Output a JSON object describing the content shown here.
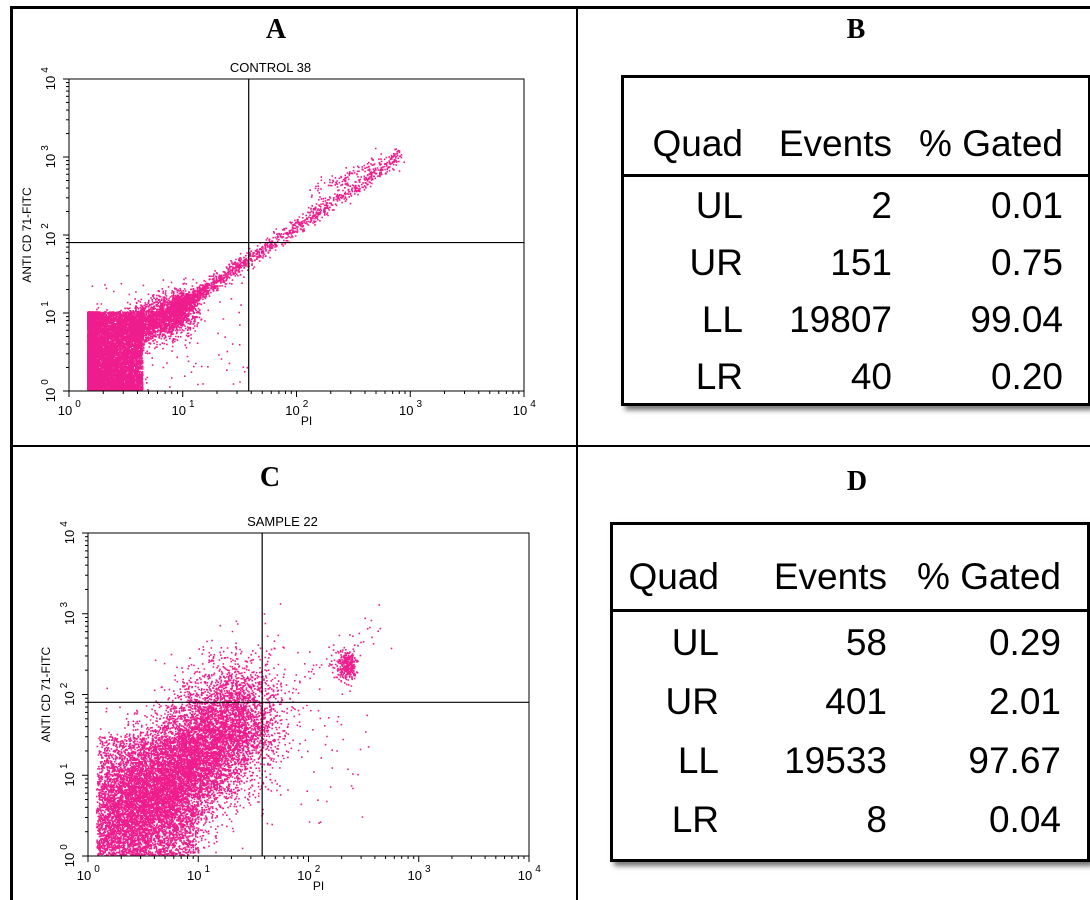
{
  "panels": {
    "A": "A",
    "B": "B",
    "C": "C",
    "D": "D"
  },
  "colors": {
    "dots": "#ee1c8c",
    "axes": "#000000"
  },
  "chart_data": [
    {
      "type": "scatter",
      "title": "CONTROL 38",
      "xlabel": "PI",
      "ylabel": "ANTI CD 71-FITC",
      "xscale": "log",
      "yscale": "log",
      "xlim": [
        1,
        10000
      ],
      "ylim": [
        1,
        10000
      ],
      "xticks": [
        "10",
        "10",
        "10",
        "10",
        "10"
      ],
      "xtick_exp": [
        "0",
        "1",
        "2",
        "3",
        "4"
      ],
      "yticks": [
        "10",
        "10",
        "10",
        "10",
        "10"
      ],
      "ytick_exp": [
        "0",
        "1",
        "2",
        "3",
        "4"
      ],
      "quadrant_gate": {
        "x": 38,
        "y": 80
      },
      "populations": [
        {
          "region": "LL dense cluster",
          "x_range": [
            1.5,
            8
          ],
          "y_range": [
            1,
            12
          ]
        },
        {
          "region": "diagonal tail",
          "x_range": [
            8,
            800
          ],
          "y_range": [
            12,
            1200
          ]
        }
      ]
    },
    {
      "type": "table",
      "columns": [
        "Quad",
        "Events",
        "% Gated"
      ],
      "rows": [
        [
          "UL",
          "2",
          "0.01"
        ],
        [
          "UR",
          "151",
          "0.75"
        ],
        [
          "LL",
          "19807",
          "99.04"
        ],
        [
          "LR",
          "40",
          "0.20"
        ]
      ]
    },
    {
      "type": "scatter",
      "title": "SAMPLE 22",
      "xlabel": "PI",
      "ylabel": "ANTI CD 71-FITC",
      "xscale": "log",
      "yscale": "log",
      "xlim": [
        1,
        10000
      ],
      "ylim": [
        1,
        10000
      ],
      "xticks": [
        "10",
        "10",
        "10",
        "10",
        "10"
      ],
      "xtick_exp": [
        "0",
        "1",
        "2",
        "3",
        "4"
      ],
      "yticks": [
        "10",
        "10",
        "10",
        "10",
        "10"
      ],
      "ytick_exp": [
        "0",
        "1",
        "2",
        "3",
        "4"
      ],
      "quadrant_gate": {
        "x": 38,
        "y": 80
      },
      "populations": [
        {
          "region": "LL dense cluster",
          "x_range": [
            1.1,
            30
          ],
          "y_range": [
            1,
            80
          ]
        },
        {
          "region": "UR cluster",
          "x_range": [
            180,
            260
          ],
          "y_range": [
            160,
            320
          ]
        }
      ]
    },
    {
      "type": "table",
      "columns": [
        "Quad",
        "Events",
        "% Gated"
      ],
      "rows": [
        [
          "UL",
          "58",
          "0.29"
        ],
        [
          "UR",
          "401",
          "2.01"
        ],
        [
          "LL",
          "19533",
          "97.67"
        ],
        [
          "LR",
          "8",
          "0.04"
        ]
      ]
    }
  ]
}
